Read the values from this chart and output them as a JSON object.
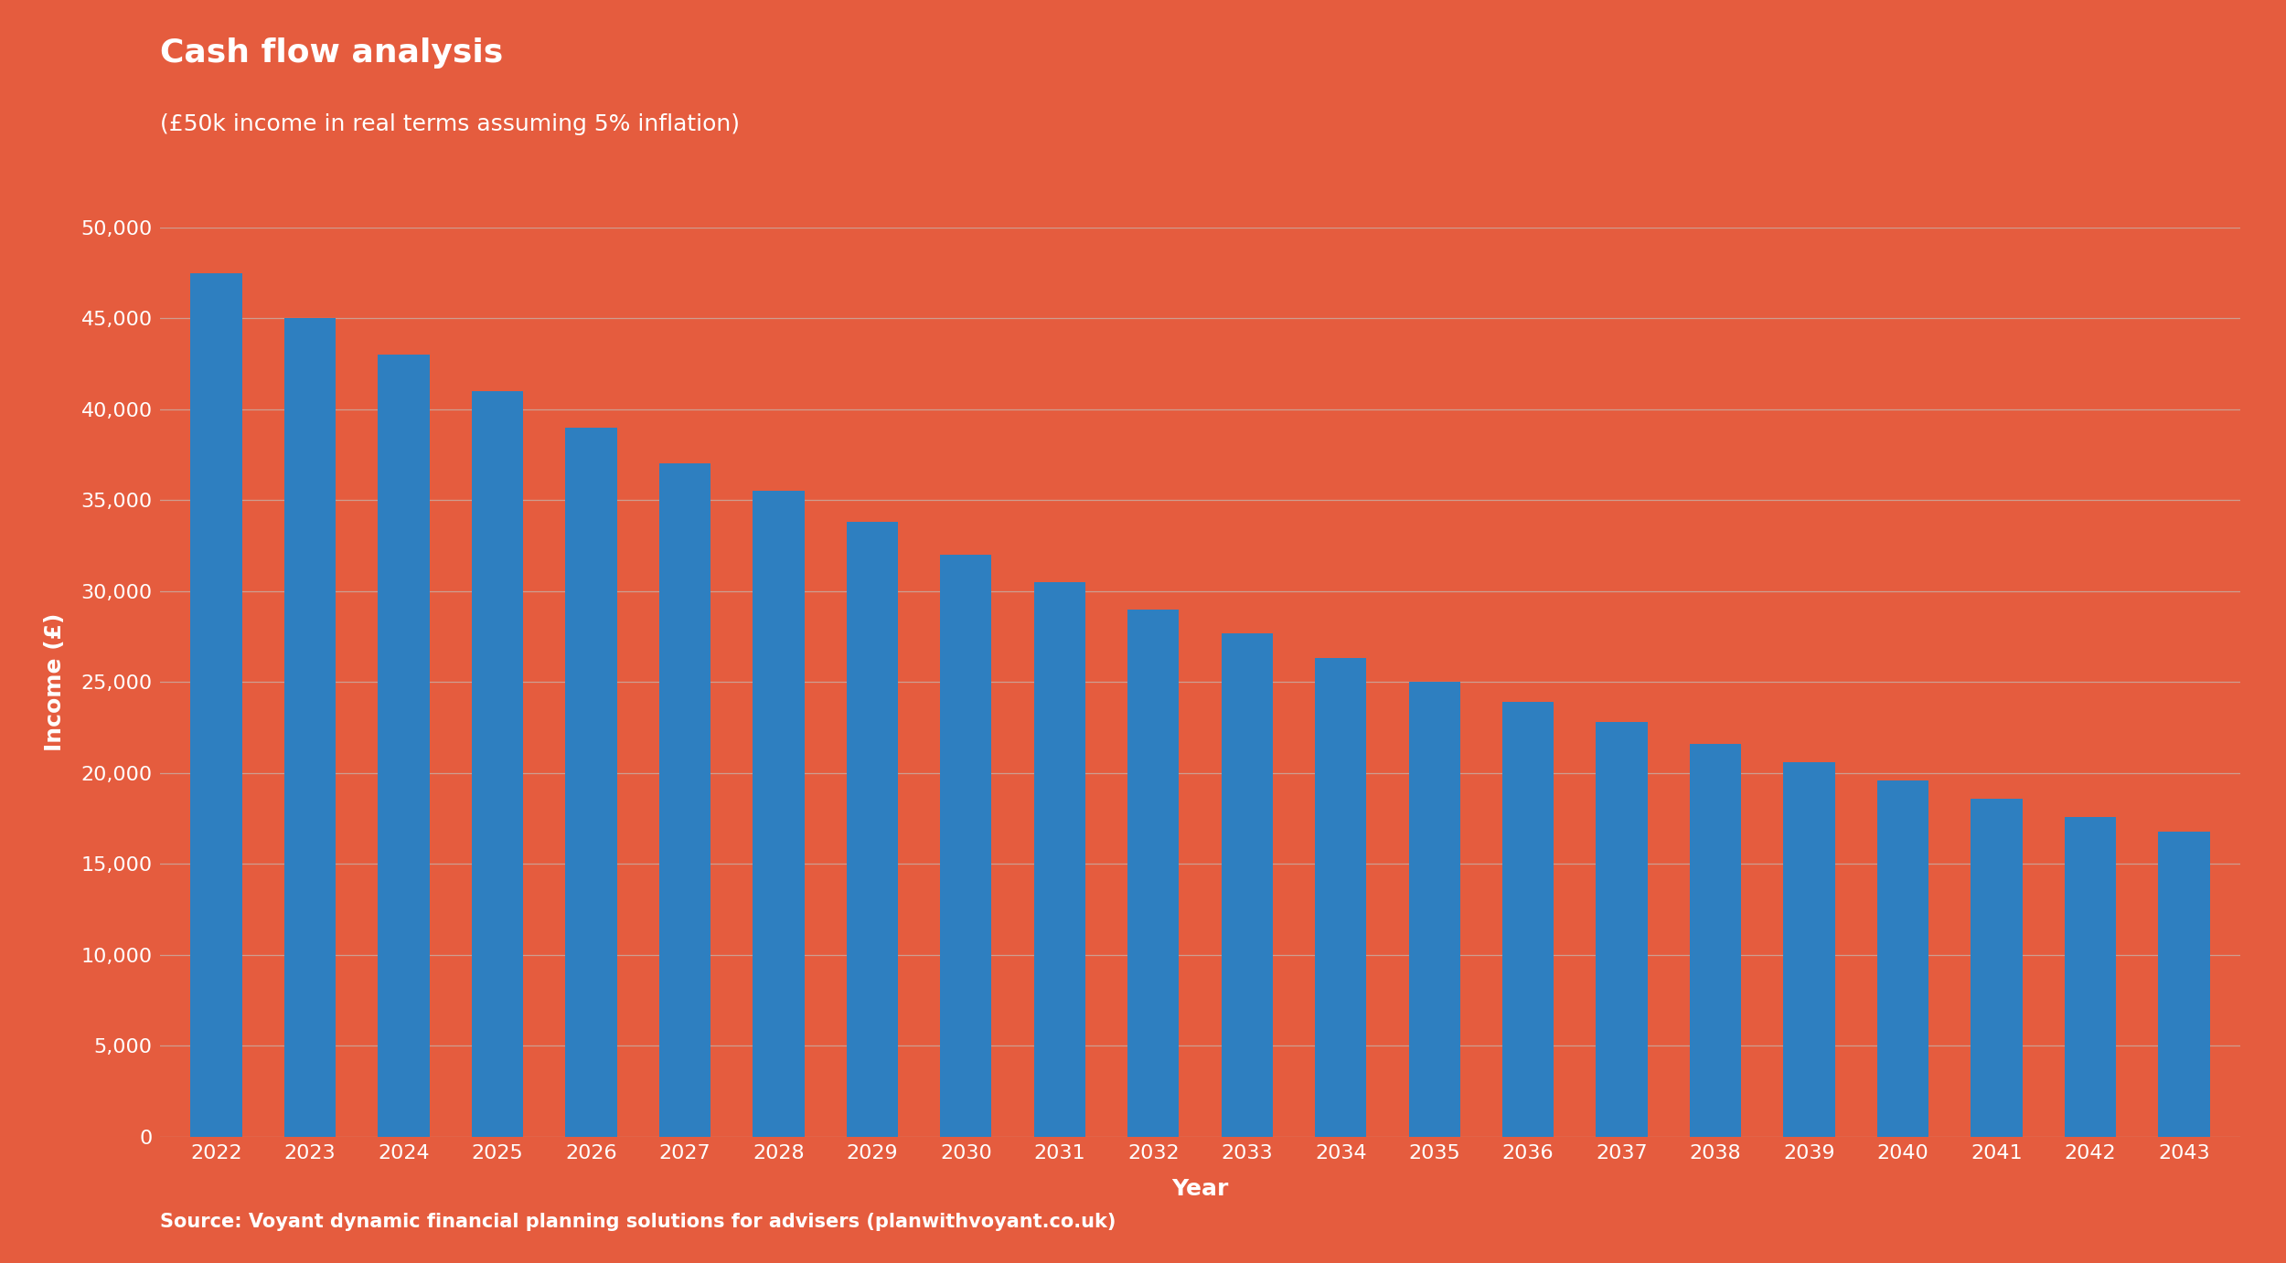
{
  "title": "Cash flow analysis",
  "subtitle": "(£50k income in real terms assuming 5% inflation)",
  "xlabel": "Year",
  "ylabel": "Income (£)",
  "source": "Source: Voyant dynamic financial planning solutions for advisers (planwithvoyant.co.uk)",
  "background_color": "#E55C3E",
  "bar_color": "#2E7FC0",
  "grid_color": "#C8AFA6",
  "text_color": "#FFFFFF",
  "years": [
    2022,
    2023,
    2024,
    2025,
    2026,
    2027,
    2028,
    2029,
    2030,
    2031,
    2032,
    2033,
    2034,
    2035,
    2036,
    2037,
    2038,
    2039,
    2040,
    2041,
    2042,
    2043
  ],
  "values": [
    47500,
    45000,
    43000,
    41000,
    39000,
    37000,
    35500,
    33800,
    32000,
    30500,
    29000,
    27700,
    26300,
    25000,
    23900,
    22800,
    21600,
    20600,
    19600,
    18600,
    17600,
    16750
  ],
  "ylim": [
    0,
    50000
  ],
  "yticks": [
    0,
    5000,
    10000,
    15000,
    20000,
    25000,
    30000,
    35000,
    40000,
    45000,
    50000
  ],
  "title_fontsize": 26,
  "subtitle_fontsize": 18,
  "axis_label_fontsize": 18,
  "tick_fontsize": 16,
  "source_fontsize": 15,
  "bar_width": 0.55
}
